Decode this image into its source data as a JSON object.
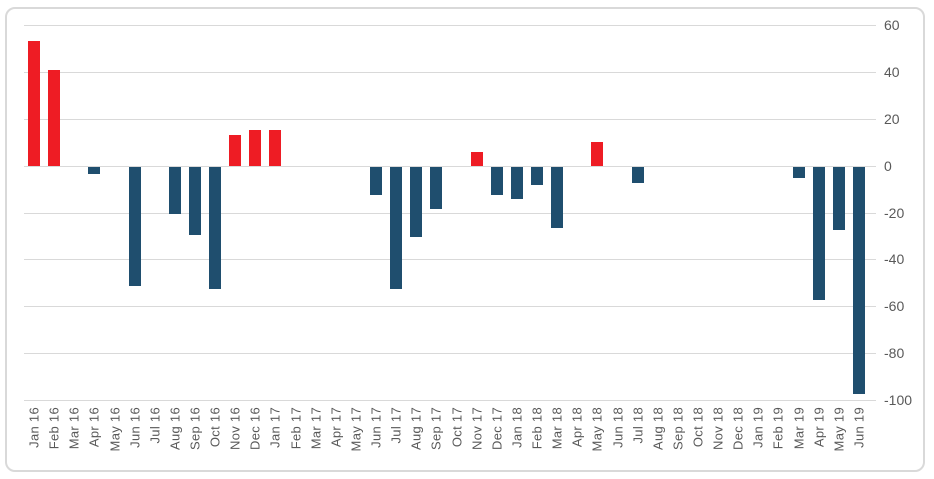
{
  "chart_data": {
    "type": "bar",
    "title": "",
    "xlabel": "",
    "ylabel": "",
    "categories": [
      "Jan 16",
      "Feb 16",
      "Mar 16",
      "Apr 16",
      "May 16",
      "Jun 16",
      "Jul 16",
      "Aug 16",
      "Sep 16",
      "Oct 16",
      "Nov 16",
      "Dec 16",
      "Jan 17",
      "Feb 17",
      "Mar 17",
      "Apr 17",
      "May 17",
      "Jun 17",
      "Jul 17",
      "Aug 17",
      "Sep 17",
      "Oct 17",
      "Nov 17",
      "Dec 17",
      "Jan 18",
      "Feb 18",
      "Mar 18",
      "Apr 18",
      "May 18",
      "Jun 18",
      "Jul 18",
      "Aug 18",
      "Sep 18",
      "Oct 18",
      "Nov 18",
      "Dec 18",
      "Jan 19",
      "Feb 19",
      "Mar 19",
      "Apr 19",
      "May 19",
      "Jun 19"
    ],
    "values": [
      53,
      41,
      0,
      -3,
      0,
      -51,
      0,
      -20,
      -29,
      -52,
      13,
      15,
      15,
      0,
      0,
      0,
      0,
      -12,
      -52,
      -30,
      -18,
      0,
      6,
      -12,
      -14,
      -8,
      -26,
      0,
      10,
      0,
      -7,
      0,
      0,
      0,
      0,
      0,
      0,
      0,
      -5,
      -57,
      -27,
      -97
    ],
    "ylim": [
      -100,
      60
    ],
    "yticks": [
      60,
      40,
      20,
      0,
      -20,
      -40,
      -60,
      -80,
      -100
    ],
    "grid": true,
    "legend": "none",
    "y_axis_position": "right",
    "x_label_rotation": -90,
    "colors": {
      "positive": "#EE1C24",
      "negative": "#1F4E6E",
      "gridline": "#D9D9D9",
      "axis_text": "#595959",
      "border": "#D9D9D9",
      "background": "#FFFFFF"
    }
  }
}
